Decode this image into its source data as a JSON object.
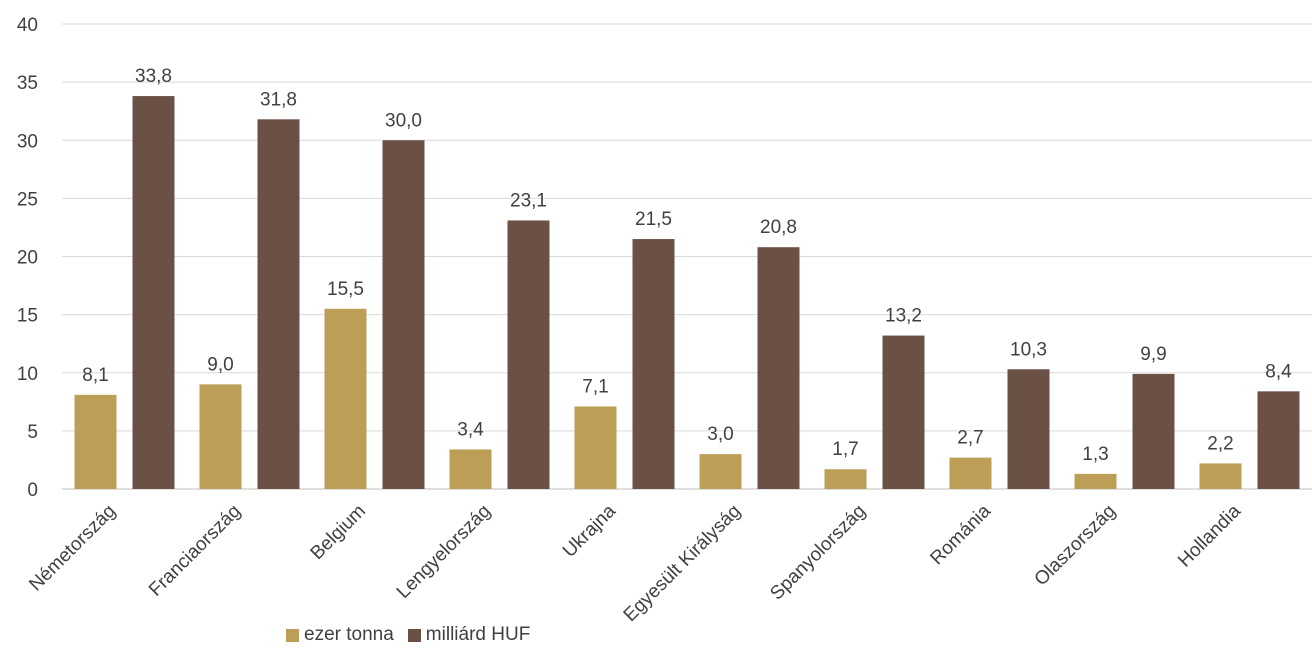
{
  "chart_data": {
    "type": "bar",
    "categories": [
      "Németország",
      "Franciaország",
      "Belgium",
      "Lengyelország",
      "Ukrajna",
      "Egyesült Királyság",
      "Spanyolország",
      "Románia",
      "Olaszország",
      "Hollandia"
    ],
    "series": [
      {
        "name": "ezer tonna",
        "color": "#bd9e57",
        "values": [
          8.1,
          9.0,
          15.5,
          3.4,
          7.1,
          3.0,
          1.7,
          2.7,
          1.3,
          2.2
        ]
      },
      {
        "name": "milliárd HUF",
        "color": "#6b5045",
        "values": [
          33.8,
          31.8,
          30.0,
          23.1,
          21.5,
          20.8,
          13.2,
          10.3,
          9.9,
          8.4
        ]
      }
    ],
    "ylim": [
      0,
      40
    ],
    "yticks": [
      0,
      5,
      10,
      15,
      20,
      25,
      30,
      35,
      40
    ],
    "decimal_separator": ",",
    "grid": true,
    "legend_position": "bottom"
  }
}
